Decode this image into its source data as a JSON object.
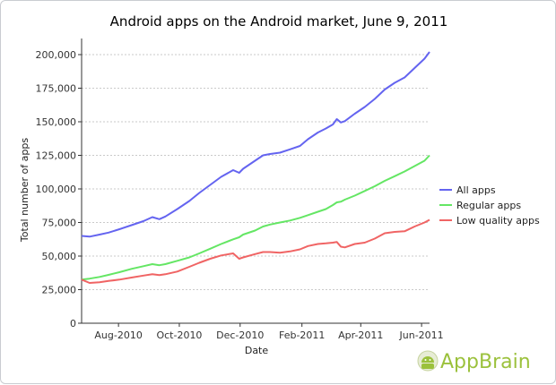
{
  "chart_data": {
    "type": "line",
    "title": "Android apps on the Android market, June 9, 2011",
    "xlabel": "Date",
    "ylabel": "Total number of apps",
    "ylim": [
      0,
      212000
    ],
    "x_range": [
      "2010-06-25",
      "2011-06-09"
    ],
    "x_ticks": [
      {
        "label": "Aug-2010",
        "date": "2010-08-01"
      },
      {
        "label": "Oct-2010",
        "date": "2010-10-01"
      },
      {
        "label": "Dec-2010",
        "date": "2010-12-01"
      },
      {
        "label": "Feb-2011",
        "date": "2011-02-01"
      },
      {
        "label": "Apr-2011",
        "date": "2011-04-01"
      },
      {
        "label": "Jun-2011",
        "date": "2011-06-01"
      }
    ],
    "y_ticks": [
      {
        "label": "0",
        "value": 0
      },
      {
        "label": "25,000",
        "value": 25000
      },
      {
        "label": "50,000",
        "value": 50000
      },
      {
        "label": "75,000",
        "value": 75000
      },
      {
        "label": "100,000",
        "value": 100000
      },
      {
        "label": "125,000",
        "value": 125000
      },
      {
        "label": "150,000",
        "value": 150000
      },
      {
        "label": "175,000",
        "value": 175000
      },
      {
        "label": "200,000",
        "value": 200000
      }
    ],
    "grid": "horizontal dashed",
    "legend_position": "right",
    "x": [
      "2010-06-25",
      "2010-07-03",
      "2010-07-13",
      "2010-07-22",
      "2010-08-02",
      "2010-08-14",
      "2010-08-26",
      "2010-09-04",
      "2010-09-11",
      "2010-09-17",
      "2010-09-29",
      "2010-10-11",
      "2010-10-21",
      "2010-11-01",
      "2010-11-12",
      "2010-11-24",
      "2010-11-30",
      "2010-12-04",
      "2010-12-16",
      "2010-12-24",
      "2010-12-31",
      "2011-01-10",
      "2011-01-20",
      "2011-01-30",
      "2011-02-07",
      "2011-02-17",
      "2011-02-25",
      "2011-03-04",
      "2011-03-08",
      "2011-03-12",
      "2011-03-16",
      "2011-03-26",
      "2011-04-05",
      "2011-04-15",
      "2011-04-25",
      "2011-05-05",
      "2011-05-15",
      "2011-05-25",
      "2011-06-04",
      "2011-06-09"
    ],
    "series": [
      {
        "name": "All apps",
        "color": "#6464f0",
        "values": [
          65000,
          64500,
          66000,
          67500,
          70000,
          73000,
          76000,
          79000,
          77500,
          79500,
          85000,
          91000,
          97000,
          103000,
          109000,
          114000,
          112000,
          115000,
          121000,
          125000,
          126000,
          127000,
          129500,
          132000,
          137000,
          142000,
          145000,
          148000,
          152000,
          149500,
          150500,
          156000,
          161000,
          167000,
          174000,
          179000,
          183000,
          190000,
          197000,
          202000
        ]
      },
      {
        "name": "Regular apps",
        "color": "#64e664",
        "values": [
          32500,
          33200,
          34500,
          36000,
          38000,
          40500,
          42500,
          44000,
          43200,
          44000,
          46500,
          49000,
          52000,
          55500,
          59000,
          62500,
          64000,
          66000,
          69000,
          72000,
          73500,
          75000,
          76500,
          78500,
          80500,
          83000,
          85000,
          88000,
          90000,
          90500,
          92000,
          95000,
          98500,
          102000,
          106000,
          109500,
          113000,
          117000,
          121000,
          125000
        ]
      },
      {
        "name": "Low quality apps",
        "color": "#f06464",
        "values": [
          32500,
          30000,
          30500,
          31500,
          32500,
          34000,
          35500,
          36500,
          35800,
          36500,
          38500,
          42000,
          45000,
          48000,
          50500,
          52000,
          48000,
          49000,
          51500,
          53000,
          53000,
          52500,
          53500,
          55000,
          57500,
          59000,
          59500,
          60000,
          60500,
          57000,
          56500,
          59000,
          60000,
          63000,
          67000,
          68000,
          68500,
          72000,
          75000,
          77000
        ]
      }
    ]
  },
  "brand": {
    "name": "AppBrain",
    "logo_color": "#9bc13c"
  }
}
